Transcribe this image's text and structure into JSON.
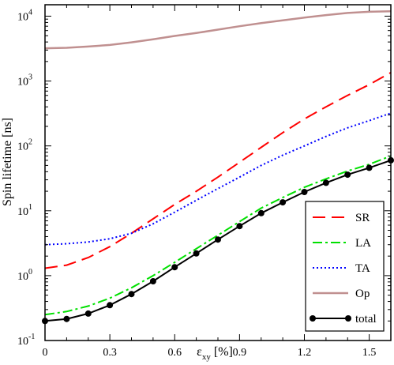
{
  "chart_data": {
    "type": "line",
    "ylabel": "Spin lifetime [ns]",
    "xlabel_main": "ε",
    "xlabel_sub": "xy",
    "xlabel_unit": " [%]",
    "xlim": [
      0,
      1.6
    ],
    "ylim": [
      0.1,
      15000
    ],
    "yscale": "log",
    "x_ticks": [
      0,
      0.3,
      0.6,
      0.9,
      1.2,
      1.5
    ],
    "x_tick_labels": [
      "0",
      "0.3",
      "0.6",
      "0.9",
      "1.2",
      "1.5"
    ],
    "y_ticks": [
      0.1,
      1,
      10,
      100,
      1000,
      10000
    ],
    "y_tick_base": "10",
    "y_tick_exponents": [
      "-1",
      "0",
      "1",
      "2",
      "3",
      "4"
    ],
    "grid": false,
    "legend_position": "bottom-right",
    "series": [
      {
        "name": "SR",
        "color": "#ff0000",
        "style": "dashed",
        "x": [
          0,
          0.1,
          0.2,
          0.3,
          0.4,
          0.5,
          0.6,
          0.7,
          0.8,
          0.9,
          1.0,
          1.1,
          1.2,
          1.3,
          1.4,
          1.5,
          1.6
        ],
        "y": [
          1.3,
          1.45,
          1.9,
          2.8,
          4.5,
          7.5,
          12.5,
          20,
          33,
          56,
          95,
          160,
          260,
          400,
          600,
          880,
          1350
        ]
      },
      {
        "name": "LA",
        "color": "#00e000",
        "style": "dashdot",
        "x": [
          0,
          0.1,
          0.2,
          0.3,
          0.4,
          0.5,
          0.6,
          0.7,
          0.8,
          0.9,
          1.0,
          1.1,
          1.2,
          1.3,
          1.4,
          1.5,
          1.6
        ],
        "y": [
          0.25,
          0.28,
          0.34,
          0.45,
          0.65,
          1.0,
          1.6,
          2.6,
          4.2,
          6.8,
          11,
          16,
          23,
          31,
          41,
          52,
          70
        ]
      },
      {
        "name": "TA",
        "color": "#0000ff",
        "style": "dotted",
        "x": [
          0,
          0.1,
          0.2,
          0.3,
          0.4,
          0.5,
          0.6,
          0.7,
          0.8,
          0.9,
          1.0,
          1.1,
          1.2,
          1.3,
          1.4,
          1.5,
          1.6
        ],
        "y": [
          3.0,
          3.1,
          3.3,
          3.7,
          4.5,
          6.3,
          9.5,
          14.5,
          22,
          33,
          50,
          72,
          100,
          140,
          190,
          245,
          320
        ]
      },
      {
        "name": "Op",
        "color": "#c09090",
        "style": "solid",
        "x": [
          0,
          0.1,
          0.2,
          0.3,
          0.4,
          0.5,
          0.6,
          0.7,
          0.8,
          0.9,
          1.0,
          1.1,
          1.2,
          1.3,
          1.4,
          1.5,
          1.6
        ],
        "y": [
          3200,
          3250,
          3400,
          3600,
          3950,
          4400,
          4950,
          5500,
          6200,
          7000,
          7800,
          8600,
          9500,
          10400,
          11200,
          11700,
          11900
        ]
      },
      {
        "name": "total",
        "color": "#000000",
        "style": "solid-markers",
        "x": [
          0,
          0.1,
          0.2,
          0.3,
          0.4,
          0.5,
          0.6,
          0.7,
          0.8,
          0.9,
          1.0,
          1.1,
          1.2,
          1.3,
          1.4,
          1.5,
          1.6
        ],
        "y": [
          0.2,
          0.215,
          0.26,
          0.35,
          0.52,
          0.82,
          1.35,
          2.2,
          3.6,
          5.8,
          9.2,
          13.5,
          19.5,
          27,
          36,
          46,
          60
        ]
      }
    ]
  }
}
